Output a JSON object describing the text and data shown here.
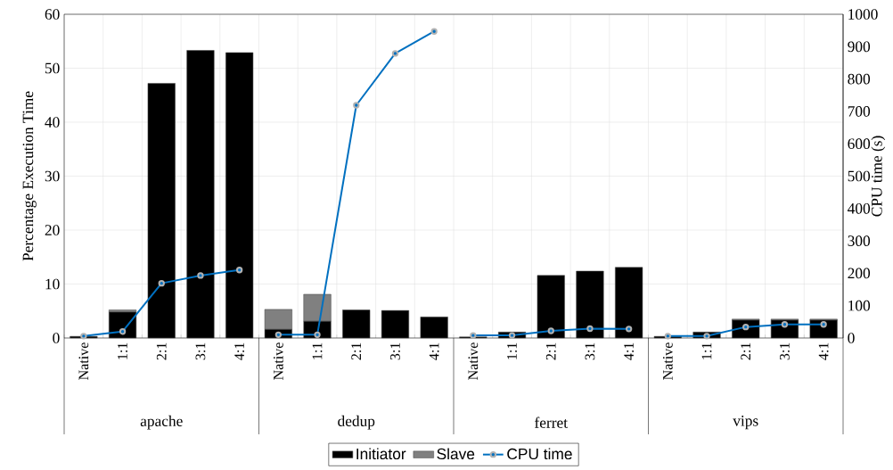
{
  "chart_data": {
    "type": "bar",
    "stacked": true,
    "ylabel": "Percentage Execution Time",
    "y2label": "CPU time (s)",
    "categories": [
      "Native",
      "1:1",
      "2:1",
      "3:1",
      "4:1",
      "Native",
      "1:1",
      "2:1",
      "3:1",
      "4:1",
      "Native",
      "1:1",
      "2:1",
      "3:1",
      "4:1",
      "Native",
      "1:1",
      "2:1",
      "3:1",
      "4:1"
    ],
    "annotations": [
      "apache",
      "dedup",
      "ferret",
      "vips"
    ],
    "series": [
      {
        "name": "Initiator",
        "color": "#000000",
        "values": [
          0.3,
          4.8,
          47.2,
          53.3,
          52.9,
          1.6,
          3.1,
          5.2,
          5.1,
          3.9,
          0.2,
          1.1,
          11.6,
          12.4,
          13.1,
          0.3,
          1.1,
          3.3,
          3.3,
          3.3
        ]
      },
      {
        "name": "Slave",
        "color": "#808080",
        "values": [
          0,
          0.4,
          0,
          0,
          0,
          3.7,
          5.0,
          0,
          0,
          0,
          0,
          0,
          0,
          0,
          0,
          0,
          0,
          0.2,
          0.2,
          0.2
        ]
      },
      {
        "name": "CPU time",
        "type": "line",
        "axis": "y2",
        "color": "#0070c0",
        "values": [
          6,
          20,
          169,
          193,
          210,
          10,
          10,
          719,
          879,
          947,
          8,
          8,
          22,
          29,
          28,
          6,
          6,
          34,
          42,
          42
        ]
      }
    ],
    "ylim": [
      0,
      60
    ],
    "yticks": [
      0,
      10,
      20,
      30,
      40,
      50,
      60
    ],
    "y2lim": [
      0,
      1000
    ],
    "y2ticks": [
      0,
      100,
      200,
      300,
      400,
      500,
      600,
      700,
      800,
      900,
      1000
    ],
    "grid": true,
    "legend": "bottom",
    "marker": "circle",
    "line_style": "solid"
  }
}
